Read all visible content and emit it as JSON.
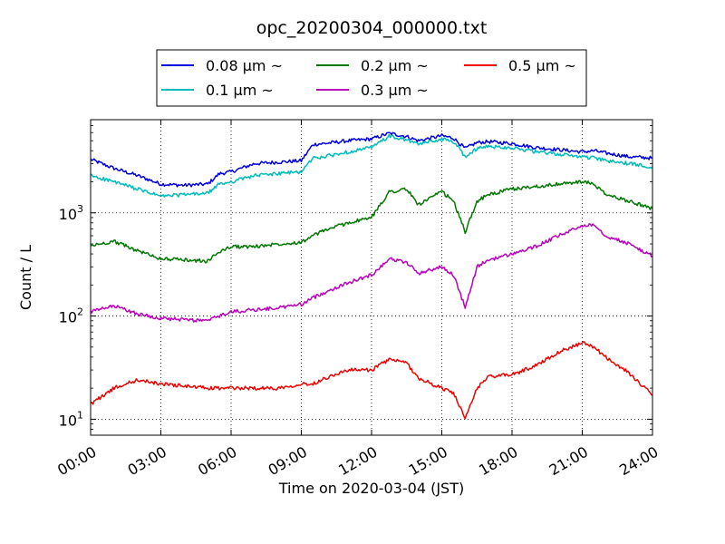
{
  "chart_data": {
    "type": "line",
    "title": "opc_20200304_000000.txt",
    "xlabel": "Time on 2020-03-04 (JST)",
    "ylabel": "Count / L",
    "yscale": "log",
    "xlim": [
      "00:00",
      "24:00"
    ],
    "ylim": [
      7,
      8000
    ],
    "grid": true,
    "legend_placement": "top-center",
    "x_ticks": [
      "00:00",
      "03:00",
      "06:00",
      "09:00",
      "12:00",
      "15:00",
      "18:00",
      "21:00",
      "24:00"
    ],
    "y_ticks": [
      {
        "value": 10,
        "base": "10",
        "exp": "1"
      },
      {
        "value": 100,
        "base": "10",
        "exp": "2"
      },
      {
        "value": 1000,
        "base": "10",
        "exp": "3"
      }
    ],
    "x": [
      "00:00",
      "01:00",
      "02:00",
      "03:00",
      "04:00",
      "05:00",
      "05:30",
      "06:00",
      "07:00",
      "08:00",
      "09:00",
      "09:30",
      "10:00",
      "11:00",
      "12:00",
      "12:45",
      "13:30",
      "14:00",
      "15:00",
      "15:30",
      "16:00",
      "16:30",
      "17:00",
      "18:00",
      "19:00",
      "20:00",
      "21:00",
      "21:30",
      "22:00",
      "23:00",
      "24:00"
    ],
    "series": [
      {
        "name": "0.08 μm ~",
        "color": "#0000dd",
        "values": [
          3300,
          2700,
          2300,
          1900,
          1850,
          1900,
          2400,
          2500,
          3000,
          3100,
          3200,
          4600,
          4700,
          5000,
          5200,
          5900,
          5500,
          5000,
          5600,
          5300,
          4200,
          4800,
          4900,
          4700,
          4300,
          4100,
          3900,
          4000,
          3800,
          3500,
          3400
        ]
      },
      {
        "name": "0.1 μm ~",
        "color": "#00bbbb",
        "values": [
          2300,
          2000,
          1700,
          1450,
          1500,
          1550,
          1900,
          2000,
          2300,
          2400,
          2500,
          3400,
          3500,
          3900,
          4300,
          5500,
          5100,
          4600,
          5200,
          4900,
          3500,
          4200,
          4400,
          4300,
          3900,
          3700,
          3500,
          3400,
          3200,
          3000,
          2800
        ]
      },
      {
        "name": "0.2 μm ~",
        "color": "#007700",
        "values": [
          480,
          530,
          430,
          360,
          350,
          340,
          420,
          470,
          470,
          500,
          520,
          600,
          680,
          800,
          900,
          1600,
          1700,
          1200,
          1600,
          1300,
          650,
          1300,
          1500,
          1700,
          1800,
          1900,
          2000,
          1900,
          1500,
          1300,
          1100
        ]
      },
      {
        "name": "0.3 μm ~",
        "color": "#bb00bb",
        "values": [
          110,
          125,
          105,
          95,
          92,
          90,
          100,
          110,
          115,
          120,
          130,
          150,
          170,
          210,
          250,
          360,
          330,
          260,
          300,
          250,
          120,
          300,
          350,
          400,
          470,
          600,
          750,
          780,
          600,
          500,
          380
        ]
      },
      {
        "name": "0.5 μm ~",
        "color": "#ee0000",
        "values": [
          14,
          20,
          24,
          22,
          21,
          20,
          20,
          20,
          20,
          20,
          22,
          22,
          25,
          30,
          30,
          38,
          35,
          25,
          20,
          18,
          10,
          20,
          26,
          27,
          33,
          45,
          55,
          50,
          40,
          28,
          17
        ]
      }
    ]
  }
}
